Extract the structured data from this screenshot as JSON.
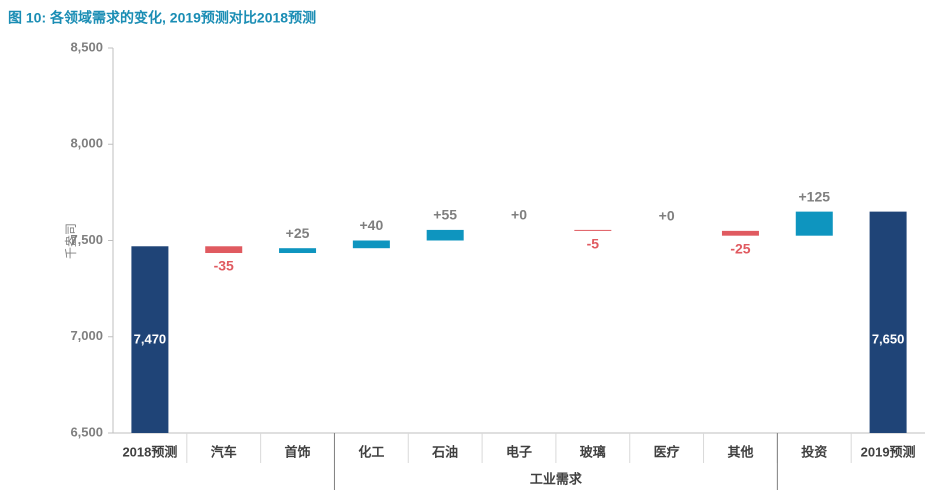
{
  "chart_data": {
    "type": "waterfall",
    "title": "图 10: 各领域需求的变化, 2019预测对比2018预测",
    "y_label": "千盎司",
    "categories": [
      "2018预测",
      "汽车",
      "首饰",
      "化工",
      "石油",
      "电子",
      "玻璃",
      "医疗",
      "其他",
      "投资",
      "2019预测"
    ],
    "values": [
      7470,
      -35,
      25,
      40,
      55,
      0,
      -5,
      0,
      -25,
      125,
      7650
    ],
    "value_labels": [
      "7,470",
      "-35",
      "+25",
      "+40",
      "+55",
      "+0",
      "-5",
      "+0",
      "-25",
      "+125",
      "7,650"
    ],
    "total_color": "#1f4477",
    "increase_color": "#0e95bf",
    "decrease_color": "#e05a60",
    "ylim": [
      6500,
      8500
    ],
    "yticks": [
      {
        "value": 6500,
        "label": "6,500"
      },
      {
        "value": 7000,
        "label": "7,000"
      },
      {
        "value": 7500,
        "label": "7,500"
      },
      {
        "value": 8000,
        "label": "8,000"
      },
      {
        "value": 8500,
        "label": "8,500"
      }
    ],
    "groups": [
      {
        "label": "工业需求",
        "start": 3,
        "end": 8
      }
    ]
  }
}
